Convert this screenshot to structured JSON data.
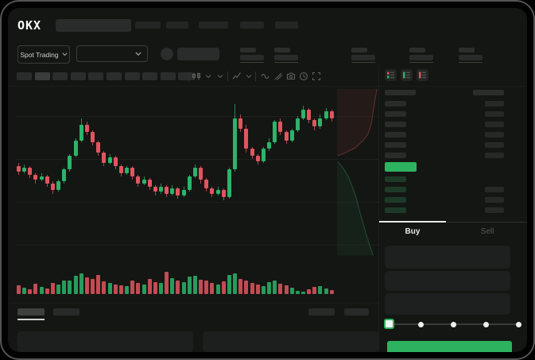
{
  "header": {
    "logo_text": "OKX",
    "nav_placeholder_count": 5
  },
  "subheader": {
    "market_selector_label": "Spot Trading",
    "stat_placeholder_count": 5
  },
  "chart_toolbar": {
    "timeframe_placeholder_count": 10,
    "active_timeframe_index": 1,
    "icons": [
      "candle-type-icon",
      "chevron-down-icon",
      "chevron-down-icon",
      "indicators-icon",
      "chevron-down-icon",
      "trend-line-icon",
      "measure-icon",
      "camera-icon",
      "history-icon",
      "fullscreen-icon"
    ]
  },
  "chart_data": {
    "type": "candlestick",
    "note": "no axis labels visible; values normalized 0-100",
    "colors": {
      "up": "#2db36a",
      "down": "#e2555f"
    },
    "candles_ohlc": [
      [
        56,
        58,
        51,
        53
      ],
      [
        53,
        57,
        52,
        55
      ],
      [
        55,
        56,
        49,
        51
      ],
      [
        51,
        52,
        46,
        48
      ],
      [
        48,
        52,
        47,
        50
      ],
      [
        50,
        51,
        44,
        46
      ],
      [
        46,
        47,
        40,
        42
      ],
      [
        42,
        48,
        41,
        47
      ],
      [
        47,
        55,
        46,
        54
      ],
      [
        54,
        63,
        53,
        62
      ],
      [
        62,
        72,
        61,
        71
      ],
      [
        71,
        84,
        70,
        80
      ],
      [
        80,
        82,
        74,
        76
      ],
      [
        76,
        77,
        68,
        70
      ],
      [
        70,
        71,
        62,
        64
      ],
      [
        64,
        65,
        56,
        58
      ],
      [
        58,
        63,
        57,
        61
      ],
      [
        61,
        62,
        54,
        56
      ],
      [
        56,
        57,
        50,
        52
      ],
      [
        52,
        56,
        51,
        55
      ],
      [
        55,
        56,
        48,
        50
      ],
      [
        50,
        51,
        44,
        46
      ],
      [
        46,
        50,
        45,
        48
      ],
      [
        48,
        49,
        42,
        44
      ],
      [
        44,
        45,
        39,
        41
      ],
      [
        41,
        46,
        40,
        44
      ],
      [
        44,
        45,
        38,
        40
      ],
      [
        40,
        45,
        39,
        43
      ],
      [
        43,
        44,
        37,
        39
      ],
      [
        39,
        44,
        38,
        42
      ],
      [
        42,
        51,
        41,
        50
      ],
      [
        50,
        57,
        49,
        55
      ],
      [
        55,
        56,
        46,
        48
      ],
      [
        48,
        49,
        41,
        43
      ],
      [
        43,
        44,
        38,
        40
      ],
      [
        40,
        44,
        39,
        42
      ],
      [
        42,
        43,
        36,
        38
      ],
      [
        38,
        55,
        37,
        54
      ],
      [
        54,
        92,
        53,
        84
      ],
      [
        84,
        86,
        76,
        78
      ],
      [
        78,
        80,
        64,
        66
      ],
      [
        66,
        67,
        60,
        62
      ],
      [
        62,
        63,
        57,
        59
      ],
      [
        59,
        67,
        58,
        66
      ],
      [
        66,
        72,
        65,
        70
      ],
      [
        70,
        83,
        69,
        82
      ],
      [
        82,
        84,
        74,
        76
      ],
      [
        76,
        77,
        69,
        71
      ],
      [
        71,
        78,
        70,
        77
      ],
      [
        77,
        85,
        76,
        84
      ],
      [
        84,
        91,
        83,
        89
      ],
      [
        89,
        90,
        81,
        83
      ],
      [
        83,
        84,
        77,
        79
      ],
      [
        79,
        86,
        78,
        84
      ],
      [
        84,
        90,
        83,
        88
      ],
      [
        88,
        89,
        82,
        84
      ]
    ],
    "volume_normalized": [
      38,
      26,
      20,
      42,
      30,
      24,
      46,
      40,
      56,
      58,
      76,
      88,
      70,
      62,
      80,
      52,
      46,
      40,
      36,
      32,
      56,
      46,
      40,
      62,
      50,
      46,
      95,
      66,
      56,
      50,
      72,
      76,
      60,
      56,
      46,
      40,
      52,
      80,
      86,
      62,
      56,
      46,
      40,
      34,
      50,
      56,
      44,
      38,
      28,
      14,
      10,
      20,
      30,
      34,
      24,
      16
    ],
    "depth_preview": {
      "asks": [
        [
          0.93,
          0.0
        ],
        [
          0.88,
          0.07
        ],
        [
          0.84,
          0.13
        ],
        [
          0.8,
          0.2
        ],
        [
          0.72,
          0.26
        ],
        [
          0.6,
          0.3
        ],
        [
          0.42,
          0.34
        ],
        [
          0.18,
          0.37
        ],
        [
          0.02,
          0.385
        ]
      ],
      "bids": [
        [
          0.02,
          0.42
        ],
        [
          0.15,
          0.46
        ],
        [
          0.25,
          0.5
        ],
        [
          0.35,
          0.56
        ],
        [
          0.45,
          0.63
        ],
        [
          0.52,
          0.7
        ],
        [
          0.6,
          0.77
        ],
        [
          0.68,
          0.84
        ],
        [
          0.76,
          0.9
        ],
        [
          0.84,
          0.96
        ]
      ]
    }
  },
  "orderbook": {
    "view_mode_icons": [
      "book-all-icon",
      "book-bids-icon",
      "book-asks-icon"
    ],
    "ask_row_count": 6,
    "bid_row_count": 4,
    "last_price_highlight_color": "#2db35f"
  },
  "trade_panel": {
    "buy_tab_label": "Buy",
    "sell_tab_label": "Sell",
    "active_tab": "Buy",
    "input_placeholder_count": 3,
    "slider": {
      "stop_count": 5,
      "active_stop_index": 0
    },
    "submit_button_color": "#2db35f"
  },
  "bottom_panel": {
    "tab_placeholder_count": 2,
    "active_tab_index": 0,
    "right_placeholder_count": 2,
    "content_placeholder_count": 2
  },
  "colors": {
    "background": "#141613",
    "up_green": "#2db36a",
    "down_red": "#e2555f",
    "accent_green": "#2db35f"
  }
}
